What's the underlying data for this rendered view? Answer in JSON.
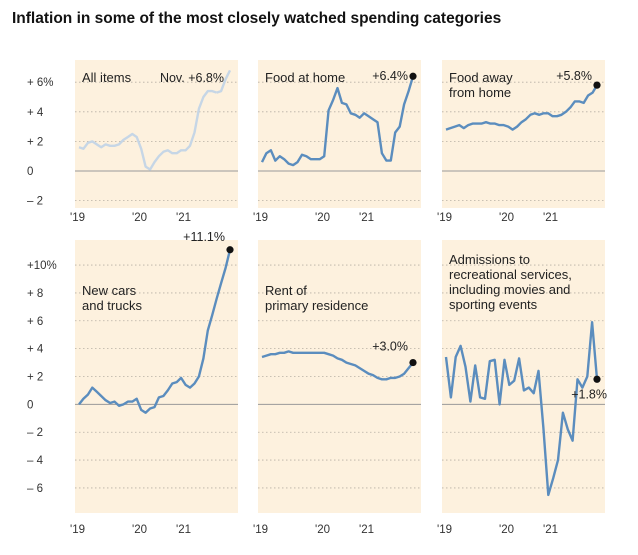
{
  "title": "Inflation in some of the most closely watched spending categories",
  "colors": {
    "panel_bg": "#fdf1de",
    "line": "#5b8dbe",
    "line_faded": "#c6d6e6",
    "zero": "#999999",
    "grid": "#b7b0a4"
  },
  "chart_data": [
    {
      "type": "line",
      "panel": "All items",
      "label_lines": [
        "All items"
      ],
      "end_label": "Nov. +6.8%",
      "highlight_from": 31,
      "highlight_color": "#c6d6e6",
      "end_dot": false,
      "yticks": [
        "+ 6%",
        "+ 4",
        "+ 2",
        "0",
        "– 2"
      ],
      "ylim": [
        -2.5,
        7.5
      ],
      "xticks": [
        "'19",
        "'20",
        "'21"
      ],
      "values": [
        1.6,
        1.5,
        1.9,
        2.0,
        1.8,
        1.6,
        1.8,
        1.7,
        1.7,
        1.8,
        2.1,
        2.3,
        2.5,
        2.3,
        1.5,
        0.3,
        0.1,
        0.6,
        1.0,
        1.3,
        1.4,
        1.2,
        1.2,
        1.4,
        1.4,
        1.7,
        2.6,
        4.2,
        5.0,
        5.4,
        5.4,
        5.3,
        5.4,
        6.2,
        6.8
      ]
    },
    {
      "type": "line",
      "panel": "Food at home",
      "label_lines": [
        "Food at home"
      ],
      "end_label": "+6.4%",
      "end_dot": true,
      "ylim": [
        -2.5,
        7.5
      ],
      "xticks": [
        "'19",
        "'20",
        "'21"
      ],
      "values": [
        0.6,
        1.2,
        1.4,
        0.7,
        1.0,
        0.8,
        0.5,
        0.4,
        0.6,
        1.1,
        1.0,
        0.8,
        0.8,
        0.8,
        1.0,
        4.1,
        4.8,
        5.6,
        4.6,
        4.5,
        3.9,
        3.8,
        3.6,
        3.9,
        3.7,
        3.5,
        3.3,
        1.2,
        0.7,
        0.7,
        2.6,
        3.0,
        4.5,
        5.4,
        6.4
      ]
    },
    {
      "type": "line",
      "panel": "Food away from home",
      "label_lines": [
        "Food away",
        "from home"
      ],
      "end_label": "+5.8%",
      "end_dot": true,
      "ylim": [
        -2.5,
        7.5
      ],
      "xticks": [
        "'19",
        "'20",
        "'21"
      ],
      "values": [
        2.8,
        2.9,
        3.0,
        3.1,
        2.9,
        3.1,
        3.2,
        3.2,
        3.2,
        3.3,
        3.2,
        3.2,
        3.1,
        3.1,
        3.0,
        2.8,
        3.0,
        3.3,
        3.5,
        3.8,
        3.9,
        3.8,
        3.9,
        3.9,
        3.7,
        3.7,
        3.8,
        4.0,
        4.3,
        4.7,
        4.7,
        4.6,
        5.1,
        5.3,
        5.8
      ]
    },
    {
      "type": "line",
      "panel": "New cars and trucks",
      "label_lines": [
        "New cars",
        "and trucks"
      ],
      "end_label": "+11.1%",
      "end_dot": true,
      "yticks": [
        "+10%",
        "+ 8",
        "+ 6",
        "+ 4",
        "+ 2",
        "0",
        "– 2",
        "– 4",
        "– 6"
      ],
      "ylim": [
        -7.8,
        11.8
      ],
      "xticks": [
        "'19",
        "'20",
        "'21"
      ],
      "values": [
        0.0,
        0.4,
        0.7,
        1.2,
        0.9,
        0.6,
        0.3,
        0.1,
        0.2,
        -0.1,
        0.0,
        0.2,
        0.2,
        0.4,
        -0.4,
        -0.6,
        -0.3,
        -0.2,
        0.5,
        0.6,
        1.0,
        1.5,
        1.6,
        1.9,
        1.4,
        1.2,
        1.5,
        2.0,
        3.3,
        5.3,
        6.4,
        7.6,
        8.7,
        9.8,
        11.1
      ]
    },
    {
      "type": "line",
      "panel": "Rent of primary residence",
      "label_lines": [
        "Rent of",
        "primary residence"
      ],
      "end_label": "+3.0%",
      "end_dot": true,
      "ylim": [
        -7.8,
        11.8
      ],
      "xticks": [
        "'19",
        "'20",
        "'21"
      ],
      "values": [
        3.4,
        3.5,
        3.6,
        3.6,
        3.7,
        3.7,
        3.8,
        3.7,
        3.7,
        3.7,
        3.7,
        3.7,
        3.7,
        3.7,
        3.7,
        3.6,
        3.5,
        3.3,
        3.2,
        3.0,
        2.9,
        2.8,
        2.6,
        2.4,
        2.2,
        2.1,
        1.9,
        1.8,
        1.8,
        1.9,
        1.9,
        2.0,
        2.2,
        2.6,
        3.0
      ]
    },
    {
      "type": "line",
      "panel": "Admissions to recreational services",
      "label_lines": [
        "Admissions to",
        "recreational services,",
        "including movies and",
        "sporting events"
      ],
      "end_label": "+1.8%",
      "end_dot": true,
      "ylim": [
        -7.8,
        11.8
      ],
      "xticks": [
        "'19",
        "'20",
        "'21"
      ],
      "values": [
        3.4,
        0.5,
        3.4,
        4.2,
        2.7,
        0.2,
        2.8,
        0.5,
        0.4,
        3.1,
        3.2,
        0.0,
        3.2,
        1.4,
        1.7,
        3.3,
        1.0,
        1.2,
        0.8,
        2.4,
        -1.7,
        -6.5,
        -5.3,
        -4.0,
        -0.6,
        -1.8,
        -2.6,
        1.8,
        1.2,
        2.0,
        5.9,
        1.8
      ]
    }
  ]
}
